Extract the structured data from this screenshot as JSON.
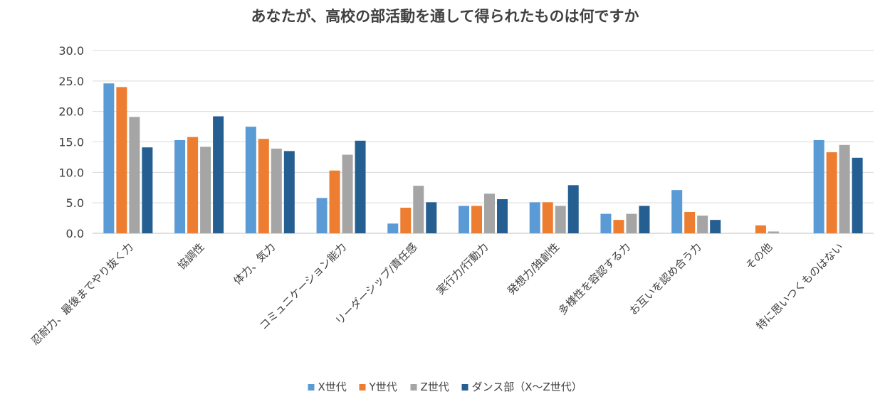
{
  "chart_data": {
    "type": "bar",
    "title": "あなたが、高校の部活動を通して得られたものは何ですか",
    "xlabel": "",
    "ylabel": "",
    "ylim": [
      0,
      30
    ],
    "yticks": [
      "0.0",
      "5.0",
      "10.0",
      "15.0",
      "20.0",
      "25.0",
      "30.0"
    ],
    "grid": true,
    "legend_position": "bottom",
    "categories": [
      "忍耐力、最後までやり抜く力",
      "協調性",
      "体力、気力",
      "コミュニケーション能力",
      "リーダーシップ/責任感",
      "実行力/行動力",
      "発想力/独創性",
      "多様性を容認する力",
      "お互いを認め合う力",
      "その他",
      "特に思いつくものはない"
    ],
    "series": [
      {
        "name": "X世代",
        "color": "#5b9bd5",
        "values": [
          24.6,
          15.3,
          17.5,
          5.8,
          1.6,
          4.5,
          5.1,
          3.2,
          7.1,
          0.0,
          15.3
        ]
      },
      {
        "name": "Y世代",
        "color": "#ed7d31",
        "values": [
          24.0,
          15.8,
          15.5,
          10.3,
          4.2,
          4.5,
          5.1,
          2.2,
          3.5,
          1.3,
          13.3
        ]
      },
      {
        "name": "Z世代",
        "color": "#a5a5a5",
        "values": [
          19.1,
          14.2,
          13.9,
          12.9,
          7.8,
          6.5,
          4.5,
          3.2,
          2.9,
          0.3,
          14.5
        ]
      },
      {
        "name": "ダンス部（X～Z世代）",
        "color": "#255e91",
        "values": [
          14.1,
          19.2,
          13.5,
          15.2,
          5.1,
          5.6,
          7.9,
          4.5,
          2.2,
          0.0,
          12.4
        ]
      }
    ]
  }
}
